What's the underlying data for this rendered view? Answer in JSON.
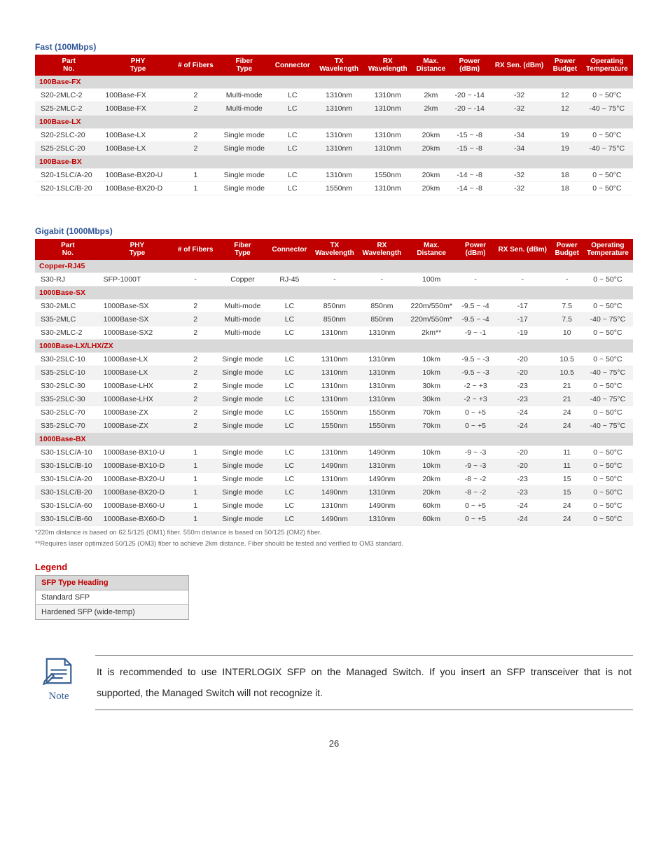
{
  "fast": {
    "title": "Fast (100Mbps)",
    "headers": [
      "Part No.",
      "PHY Type",
      "# of Fibers",
      "Fiber Type",
      "Connector",
      "TX Wavelength",
      "RX Wavelength",
      "Max. Distance",
      "Power (dBm)",
      "RX Sen. (dBm)",
      "Power Budget",
      "Operating Temperature"
    ],
    "groups": [
      {
        "label": "100Base-FX",
        "rows": [
          {
            "alt": false,
            "cells": [
              "S20-2MLC-2",
              "100Base-FX",
              "2",
              "Multi-mode",
              "LC",
              "1310nm",
              "1310nm",
              "2km",
              "-20 ~ -14",
              "-32",
              "12",
              "0 ~ 50°C"
            ]
          },
          {
            "alt": true,
            "cells": [
              "S25-2MLC-2",
              "100Base-FX",
              "2",
              "Multi-mode",
              "LC",
              "1310nm",
              "1310nm",
              "2km",
              "-20 ~ -14",
              "-32",
              "12",
              "-40 ~ 75°C"
            ]
          }
        ]
      },
      {
        "label": "100Base-LX",
        "rows": [
          {
            "alt": false,
            "cells": [
              "S20-2SLC-20",
              "100Base-LX",
              "2",
              "Single mode",
              "LC",
              "1310nm",
              "1310nm",
              "20km",
              "-15 ~ -8",
              "-34",
              "19",
              "0 ~ 50°C"
            ]
          },
          {
            "alt": true,
            "cells": [
              "S25-2SLC-20",
              "100Base-LX",
              "2",
              "Single mode",
              "LC",
              "1310nm",
              "1310nm",
              "20km",
              "-15 ~ -8",
              "-34",
              "19",
              "-40 ~ 75°C"
            ]
          }
        ]
      },
      {
        "label": "100Base-BX",
        "rows": [
          {
            "alt": false,
            "cells": [
              "S20-1SLC/A-20",
              "100Base-BX20-U",
              "1",
              "Single mode",
              "LC",
              "1310nm",
              "1550nm",
              "20km",
              "-14 ~ -8",
              "-32",
              "18",
              "0 ~ 50°C"
            ]
          },
          {
            "alt": false,
            "cells": [
              "S20-1SLC/B-20",
              "100Base-BX20-D",
              "1",
              "Single mode",
              "LC",
              "1550nm",
              "1310nm",
              "20km",
              "-14 ~ -8",
              "-32",
              "18",
              "0 ~ 50°C"
            ]
          }
        ]
      }
    ]
  },
  "gigabit": {
    "title": "Gigabit (1000Mbps)",
    "headers": [
      "Part No.",
      "PHY Type",
      "# of Fibers",
      "Fiber Type",
      "Connector",
      "TX Wavelength",
      "RX Wavelength",
      "Max. Distance",
      "Power (dBm)",
      "RX Sen. (dBm)",
      "Power Budget",
      "Operating Temperature"
    ],
    "groups": [
      {
        "label": "Copper-RJ45",
        "rows": [
          {
            "alt": false,
            "cells": [
              "S30-RJ",
              "SFP-1000T",
              "-",
              "Copper",
              "RJ-45",
              "-",
              "-",
              "100m",
              "-",
              "-",
              "-",
              "0 ~ 50°C"
            ]
          }
        ]
      },
      {
        "label": "1000Base-SX",
        "rows": [
          {
            "alt": false,
            "cells": [
              "S30-2MLC",
              "1000Base-SX",
              "2",
              "Multi-mode",
              "LC",
              "850nm",
              "850nm",
              "220m/550m*",
              "-9.5 ~ -4",
              "-17",
              "7.5",
              "0 ~ 50°C"
            ]
          },
          {
            "alt": true,
            "cells": [
              "S35-2MLC",
              "1000Base-SX",
              "2",
              "Multi-mode",
              "LC",
              "850nm",
              "850nm",
              "220m/550m*",
              "-9.5 ~ -4",
              "-17",
              "7.5",
              "-40 ~ 75°C"
            ]
          },
          {
            "alt": false,
            "cells": [
              "S30-2MLC-2",
              "1000Base-SX2",
              "2",
              "Multi-mode",
              "LC",
              "1310nm",
              "1310nm",
              "2km**",
              "-9 ~ -1",
              "-19",
              "10",
              "0 ~ 50°C"
            ]
          }
        ]
      },
      {
        "label": "1000Base-LX/LHX/ZX",
        "rows": [
          {
            "alt": false,
            "cells": [
              "S30-2SLC-10",
              "1000Base-LX",
              "2",
              "Single mode",
              "LC",
              "1310nm",
              "1310nm",
              "10km",
              "-9.5 ~ -3",
              "-20",
              "10.5",
              "0 ~ 50°C"
            ]
          },
          {
            "alt": true,
            "cells": [
              "S35-2SLC-10",
              "1000Base-LX",
              "2",
              "Single mode",
              "LC",
              "1310nm",
              "1310nm",
              "10km",
              "-9.5 ~ -3",
              "-20",
              "10.5",
              "-40 ~ 75°C"
            ]
          },
          {
            "alt": false,
            "cells": [
              "S30-2SLC-30",
              "1000Base-LHX",
              "2",
              "Single mode",
              "LC",
              "1310nm",
              "1310nm",
              "30km",
              "-2 ~ +3",
              "-23",
              "21",
              "0 ~ 50°C"
            ]
          },
          {
            "alt": true,
            "cells": [
              "S35-2SLC-30",
              "1000Base-LHX",
              "2",
              "Single mode",
              "LC",
              "1310nm",
              "1310nm",
              "30km",
              "-2 ~ +3",
              "-23",
              "21",
              "-40 ~ 75°C"
            ]
          },
          {
            "alt": false,
            "cells": [
              "S30-2SLC-70",
              "1000Base-ZX",
              "2",
              "Single mode",
              "LC",
              "1550nm",
              "1550nm",
              "70km",
              "0 ~ +5",
              "-24",
              "24",
              "0 ~ 50°C"
            ]
          },
          {
            "alt": true,
            "cells": [
              "S35-2SLC-70",
              "1000Base-ZX",
              "2",
              "Single mode",
              "LC",
              "1550nm",
              "1550nm",
              "70km",
              "0 ~ +5",
              "-24",
              "24",
              "-40 ~ 75°C"
            ]
          }
        ]
      },
      {
        "label": "1000Base-BX",
        "rows": [
          {
            "alt": false,
            "cells": [
              "S30-1SLC/A-10",
              "1000Base-BX10-U",
              "1",
              "Single mode",
              "LC",
              "1310nm",
              "1490nm",
              "10km",
              "-9 ~ -3",
              "-20",
              "11",
              "0 ~ 50°C"
            ]
          },
          {
            "alt": true,
            "cells": [
              "S30-1SLC/B-10",
              "1000Base-BX10-D",
              "1",
              "Single mode",
              "LC",
              "1490nm",
              "1310nm",
              "10km",
              "-9 ~ -3",
              "-20",
              "11",
              "0 ~ 50°C"
            ]
          },
          {
            "alt": false,
            "cells": [
              "S30-1SLC/A-20",
              "1000Base-BX20-U",
              "1",
              "Single mode",
              "LC",
              "1310nm",
              "1490nm",
              "20km",
              "-8 ~ -2",
              "-23",
              "15",
              "0 ~ 50°C"
            ]
          },
          {
            "alt": true,
            "cells": [
              "S30-1SLC/B-20",
              "1000Base-BX20-D",
              "1",
              "Single mode",
              "LC",
              "1490nm",
              "1310nm",
              "20km",
              "-8 ~ -2",
              "-23",
              "15",
              "0 ~ 50°C"
            ]
          },
          {
            "alt": false,
            "cells": [
              "S30-1SLC/A-60",
              "1000Base-BX60-U",
              "1",
              "Single mode",
              "LC",
              "1310nm",
              "1490nm",
              "60km",
              "0 ~ +5",
              "-24",
              "24",
              "0 ~ 50°C"
            ]
          },
          {
            "alt": true,
            "cells": [
              "S30-1SLC/B-60",
              "1000Base-BX60-D",
              "1",
              "Single mode",
              "LC",
              "1490nm",
              "1310nm",
              "60km",
              "0 ~ +5",
              "-24",
              "24",
              "0 ~ 50°C"
            ]
          }
        ]
      }
    ]
  },
  "footnotes": [
    "*220m distance is based on 62.5/125 (OM1) fiber. 550m distance is based on 50/125 (OM2) fiber.",
    "**Requires laser optimized 50/125 (OM3) fiber to achieve 2km distance. Fiber should be tested and verified to OM3 standard."
  ],
  "legend": {
    "title": "Legend",
    "heading": "SFP Type Heading",
    "standard": "Standard SFP",
    "hardened": "Hardened SFP (wide-temp)"
  },
  "note": {
    "label": "Note",
    "text": "It is recommended to use INTERLOGIX SFP on the Managed Switch. If you insert an SFP transceiver that is not supported, the Managed Switch will not recognize it."
  },
  "page_number": "26"
}
